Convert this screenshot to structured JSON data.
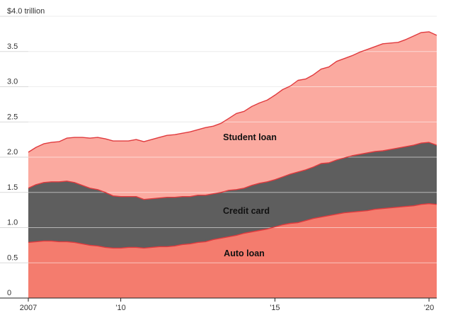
{
  "chart_data": {
    "type": "area",
    "stacked": true,
    "x": [
      2007.0,
      2007.25,
      2007.5,
      2007.75,
      2008.0,
      2008.25,
      2008.5,
      2008.75,
      2009.0,
      2009.25,
      2009.5,
      2009.75,
      2010.0,
      2010.25,
      2010.5,
      2010.75,
      2011.0,
      2011.25,
      2011.5,
      2011.75,
      2012.0,
      2012.25,
      2012.5,
      2012.75,
      2013.0,
      2013.25,
      2013.5,
      2013.75,
      2014.0,
      2014.25,
      2014.5,
      2014.75,
      2015.0,
      2015.25,
      2015.5,
      2015.75,
      2016.0,
      2016.25,
      2016.5,
      2016.75,
      2017.0,
      2017.25,
      2017.5,
      2017.75,
      2018.0,
      2018.25,
      2018.5,
      2018.75,
      2019.0,
      2019.25,
      2019.5,
      2019.75,
      2020.0,
      2020.25
    ],
    "series": [
      {
        "name": "Auto loan",
        "color": "#f47c6e",
        "values": [
          0.79,
          0.8,
          0.81,
          0.81,
          0.8,
          0.8,
          0.79,
          0.77,
          0.75,
          0.74,
          0.72,
          0.71,
          0.71,
          0.72,
          0.72,
          0.71,
          0.72,
          0.73,
          0.73,
          0.74,
          0.76,
          0.77,
          0.79,
          0.8,
          0.83,
          0.85,
          0.87,
          0.89,
          0.92,
          0.94,
          0.96,
          0.98,
          1.01,
          1.04,
          1.06,
          1.07,
          1.1,
          1.13,
          1.15,
          1.17,
          1.19,
          1.21,
          1.22,
          1.23,
          1.24,
          1.26,
          1.27,
          1.28,
          1.29,
          1.3,
          1.31,
          1.33,
          1.34,
          1.33
        ]
      },
      {
        "name": "Credit card",
        "color": "#5e5e5e",
        "values": [
          0.77,
          0.81,
          0.83,
          0.84,
          0.85,
          0.86,
          0.85,
          0.83,
          0.81,
          0.8,
          0.78,
          0.74,
          0.73,
          0.72,
          0.72,
          0.69,
          0.69,
          0.69,
          0.7,
          0.69,
          0.68,
          0.67,
          0.67,
          0.66,
          0.65,
          0.65,
          0.66,
          0.65,
          0.64,
          0.66,
          0.67,
          0.67,
          0.67,
          0.68,
          0.7,
          0.72,
          0.72,
          0.73,
          0.76,
          0.75,
          0.77,
          0.78,
          0.8,
          0.81,
          0.82,
          0.82,
          0.82,
          0.83,
          0.84,
          0.85,
          0.86,
          0.87,
          0.87,
          0.84
        ]
      },
      {
        "name": "Student loan",
        "color": "#fbaaa0",
        "values": [
          0.51,
          0.53,
          0.55,
          0.56,
          0.57,
          0.61,
          0.64,
          0.68,
          0.71,
          0.74,
          0.76,
          0.78,
          0.79,
          0.79,
          0.81,
          0.82,
          0.84,
          0.86,
          0.88,
          0.89,
          0.9,
          0.92,
          0.93,
          0.96,
          0.96,
          0.98,
          1.02,
          1.08,
          1.09,
          1.12,
          1.14,
          1.16,
          1.2,
          1.24,
          1.25,
          1.3,
          1.29,
          1.31,
          1.34,
          1.36,
          1.4,
          1.41,
          1.42,
          1.45,
          1.47,
          1.49,
          1.52,
          1.51,
          1.5,
          1.52,
          1.55,
          1.57,
          1.57,
          1.56
        ]
      }
    ],
    "series_labels": [
      "Student loan",
      "Credit card",
      "Auto loan"
    ],
    "line_color": "#e03a3e",
    "yticks": [
      {
        "value": 0,
        "label": "0"
      },
      {
        "value": 0.5,
        "label": "0.5"
      },
      {
        "value": 1.0,
        "label": "1.0"
      },
      {
        "value": 1.5,
        "label": "1.5"
      },
      {
        "value": 2.0,
        "label": "2.0"
      },
      {
        "value": 2.5,
        "label": "2.5"
      },
      {
        "value": 3.0,
        "label": "3.0"
      },
      {
        "value": 3.5,
        "label": "3.5"
      },
      {
        "value": 4.0,
        "label": "$4.0 trillion"
      }
    ],
    "xticks": [
      {
        "value": 2007,
        "label": "2007"
      },
      {
        "value": 2010,
        "label": "'10"
      },
      {
        "value": 2015,
        "label": "'15"
      },
      {
        "value": 2020,
        "label": "'20"
      }
    ],
    "xlim": [
      2007.0,
      2020.25
    ],
    "ylim": [
      0,
      4.0
    ],
    "grid": true,
    "title": "",
    "xlabel": "",
    "ylabel": ""
  }
}
